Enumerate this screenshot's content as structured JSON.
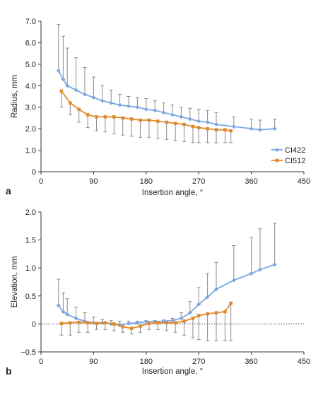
{
  "chart_data": [
    {
      "type": "line",
      "panel_label": "a",
      "xlabel": "Insertion angle, °",
      "ylabel": "Radius, mm",
      "xlim": [
        0,
        450
      ],
      "ylim": [
        0,
        7
      ],
      "xticks": [
        0,
        90,
        180,
        270,
        360,
        450
      ],
      "yticks": [
        0,
        1,
        2,
        3,
        4,
        5,
        6,
        7
      ],
      "xtick_labels": [
        "0",
        "90",
        "180",
        "270",
        "360",
        "450"
      ],
      "ytick_labels": [
        "0",
        "1.0",
        "2.0",
        "3.0",
        "4.0",
        "5.0",
        "6.0",
        "7.0"
      ],
      "legend_position": "right",
      "grid": false,
      "error_bars": "upper",
      "series": [
        {
          "name": "CI422",
          "color": "#7BA7E2",
          "marker": "diamond",
          "x": [
            30,
            38,
            45,
            60,
            75,
            90,
            105,
            120,
            135,
            150,
            165,
            180,
            195,
            210,
            225,
            240,
            255,
            270,
            285,
            300,
            330,
            360,
            375,
            400
          ],
          "y": [
            4.7,
            4.3,
            4.0,
            3.8,
            3.6,
            3.45,
            3.3,
            3.2,
            3.1,
            3.05,
            3.0,
            2.9,
            2.85,
            2.75,
            2.65,
            2.55,
            2.45,
            2.35,
            2.3,
            2.2,
            2.1,
            2.0,
            1.95,
            2.0
          ],
          "error_upper": [
            6.85,
            6.3,
            5.75,
            5.3,
            4.85,
            4.4,
            4.0,
            3.8,
            3.6,
            3.5,
            3.45,
            3.4,
            3.3,
            3.2,
            3.1,
            3.0,
            2.95,
            2.9,
            2.85,
            2.75,
            2.55,
            2.45,
            2.4,
            2.45
          ],
          "error_lower": [
            4.7,
            4.3,
            4.0,
            3.8,
            3.6,
            3.45,
            3.3,
            3.2,
            3.1,
            3.05,
            3.0,
            2.9,
            2.85,
            2.75,
            2.65,
            2.55,
            2.45,
            2.35,
            2.3,
            2.2,
            2.1,
            2.0,
            1.95,
            2.0
          ]
        },
        {
          "name": "CI512",
          "color": "#E08A2E",
          "marker": "square",
          "x": [
            35,
            50,
            65,
            80,
            95,
            110,
            125,
            140,
            155,
            170,
            185,
            200,
            215,
            230,
            245,
            260,
            270,
            285,
            300,
            315,
            325
          ],
          "y": [
            3.75,
            3.2,
            2.9,
            2.65,
            2.55,
            2.55,
            2.55,
            2.5,
            2.45,
            2.4,
            2.4,
            2.35,
            2.3,
            2.25,
            2.2,
            2.1,
            2.05,
            2.0,
            1.95,
            1.95,
            1.9
          ],
          "error_upper": [
            3.75,
            3.2,
            2.9,
            2.65,
            2.55,
            2.55,
            2.55,
            2.5,
            2.45,
            2.4,
            2.4,
            2.35,
            2.3,
            2.25,
            2.2,
            2.1,
            2.05,
            2.0,
            1.95,
            1.95,
            1.9
          ],
          "error_lower": [
            3.0,
            2.65,
            2.3,
            2.05,
            1.9,
            1.85,
            1.75,
            1.7,
            1.65,
            1.6,
            1.6,
            1.55,
            1.5,
            1.45,
            1.4,
            1.35,
            1.35,
            1.35,
            1.35,
            1.35,
            1.35
          ]
        }
      ]
    },
    {
      "type": "line",
      "panel_label": "b",
      "xlabel": "Insertion angle, °",
      "ylabel": "Elevation, mm",
      "xlim": [
        0,
        450
      ],
      "ylim": [
        -0.5,
        2.0
      ],
      "xticks": [
        0,
        90,
        180,
        270,
        360,
        450
      ],
      "yticks": [
        -0.5,
        0,
        0.5,
        1.0,
        1.5,
        2.0
      ],
      "xtick_labels": [
        "0",
        "90",
        "180",
        "270",
        "360",
        "450"
      ],
      "ytick_labels": [
        "−0.5",
        "0",
        "0.5",
        "1.0",
        "1.5",
        "2.0"
      ],
      "zero_line": "dotted",
      "grid": false,
      "series": [
        {
          "name": "CI422",
          "color": "#7BA7E2",
          "marker": "diamond",
          "x": [
            30,
            38,
            45,
            60,
            75,
            90,
            105,
            120,
            135,
            150,
            165,
            180,
            195,
            210,
            225,
            240,
            255,
            270,
            285,
            300,
            330,
            360,
            375,
            400
          ],
          "y": [
            0.33,
            0.22,
            0.17,
            0.1,
            0.05,
            0.02,
            0.02,
            0.0,
            -0.02,
            0.01,
            0.02,
            0.04,
            0.04,
            0.05,
            0.06,
            0.1,
            0.2,
            0.35,
            0.48,
            0.62,
            0.78,
            0.9,
            0.97,
            1.06
          ],
          "error_upper": [
            0.8,
            0.55,
            0.45,
            0.3,
            0.2,
            0.12,
            0.08,
            0.06,
            0.05,
            0.05,
            0.05,
            0.06,
            0.06,
            0.07,
            0.1,
            0.2,
            0.4,
            0.65,
            0.9,
            1.1,
            1.4,
            1.55,
            1.7,
            1.8
          ],
          "error_lower": [
            0.33,
            0.22,
            0.17,
            0.1,
            0.05,
            0.02,
            0.02,
            0.0,
            -0.02,
            0.01,
            0.02,
            0.04,
            0.04,
            0.05,
            0.06,
            0.1,
            0.2,
            0.35,
            0.48,
            0.62,
            0.78,
            0.9,
            0.97,
            1.06
          ]
        },
        {
          "name": "CI512",
          "color": "#E08A2E",
          "marker": "square",
          "x": [
            35,
            50,
            65,
            80,
            95,
            110,
            125,
            140,
            155,
            170,
            185,
            200,
            215,
            230,
            245,
            260,
            270,
            285,
            300,
            315,
            325
          ],
          "y": [
            0.01,
            0.02,
            0.03,
            0.02,
            0.01,
            0.02,
            0.0,
            -0.05,
            -0.08,
            -0.04,
            0.01,
            0.02,
            0.02,
            0.02,
            0.05,
            0.1,
            0.15,
            0.18,
            0.2,
            0.22,
            0.37
          ],
          "error_upper": [
            0.01,
            0.02,
            0.03,
            0.02,
            0.01,
            0.02,
            0.0,
            -0.05,
            -0.08,
            -0.04,
            0.01,
            0.02,
            0.02,
            0.02,
            0.05,
            0.1,
            0.15,
            0.18,
            0.2,
            0.22,
            0.37
          ],
          "error_lower": [
            -0.2,
            -0.2,
            -0.15,
            -0.15,
            -0.1,
            -0.1,
            -0.12,
            -0.15,
            -0.18,
            -0.15,
            -0.1,
            -0.1,
            -0.12,
            -0.15,
            -0.2,
            -0.25,
            -0.28,
            -0.3,
            -0.3,
            -0.3,
            -0.3
          ]
        }
      ]
    }
  ]
}
